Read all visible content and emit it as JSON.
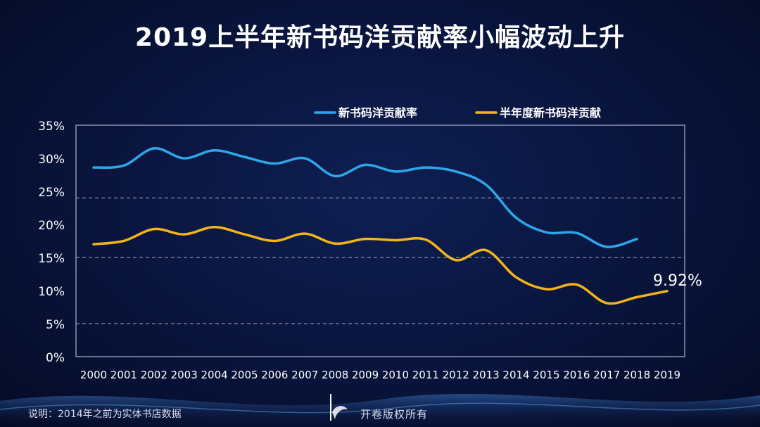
{
  "page": {
    "title": "2019上半年新书码洋贡献率小幅波动上升",
    "footer_note": "说明：2014年之前为实体书店数据",
    "footer_brand": "开卷版权所有"
  },
  "colors": {
    "series1": "#2ea7ea",
    "series2": "#f2b418",
    "axis": "#8a93b5",
    "grid": "#a9b0c8"
  },
  "chart_data": {
    "type": "line",
    "title": "2019上半年新书码洋贡献率小幅波动上升",
    "categories": [
      "2000",
      "2001",
      "2002",
      "2003",
      "2004",
      "2005",
      "2006",
      "2007",
      "2008",
      "2009",
      "2010",
      "2011",
      "2012",
      "2013",
      "2014",
      "2015",
      "2016",
      "2017",
      "2018",
      "2019"
    ],
    "y_ticks": [
      "0%",
      "5%",
      "10%",
      "15%",
      "20%",
      "25%",
      "30%",
      "35%"
    ],
    "ylim": [
      0,
      35
    ],
    "grid_lines": [
      5,
      15,
      24
    ],
    "legend_position": "top",
    "series": [
      {
        "name": "新书码洋贡献率",
        "color": "#2ea7ea",
        "values": [
          28.6,
          28.9,
          31.5,
          30.0,
          31.2,
          30.2,
          29.2,
          30.0,
          27.3,
          29.0,
          28.0,
          28.6,
          28.0,
          26.0,
          21.0,
          18.8,
          18.7,
          16.6,
          17.8,
          null
        ]
      },
      {
        "name": "半年度新书码洋贡献",
        "color": "#f2b418",
        "values": [
          17.0,
          17.5,
          19.3,
          18.5,
          19.6,
          18.5,
          17.5,
          18.6,
          17.1,
          17.8,
          17.6,
          17.7,
          14.6,
          16.1,
          12.0,
          10.2,
          10.9,
          8.1,
          9.0,
          9.92
        ]
      }
    ],
    "annotations": [
      {
        "label": "9.92%",
        "series": 1,
        "index": 19
      }
    ]
  }
}
